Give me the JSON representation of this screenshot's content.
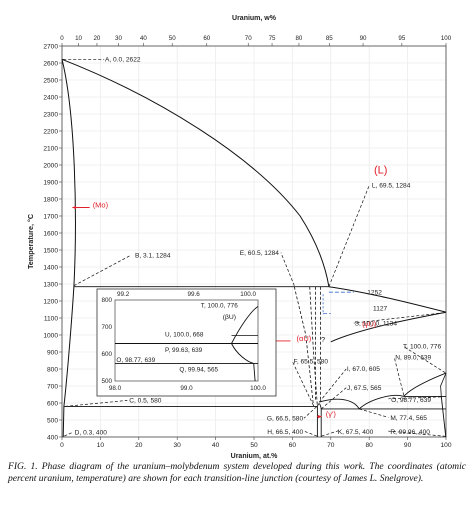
{
  "chart_data": {
    "type": "line",
    "top_axis_label": "Uranium, w%",
    "xlabel": "Uranium, at.%",
    "ylabel": "Temperature, °C",
    "xlim": [
      0,
      100
    ],
    "ylim": [
      400,
      2700
    ],
    "x_ticks": [
      0,
      10,
      20,
      30,
      40,
      50,
      60,
      70,
      80,
      90,
      100
    ],
    "y_ticks": [
      400,
      500,
      600,
      700,
      800,
      900,
      1000,
      1100,
      1200,
      1300,
      1400,
      1500,
      1600,
      1700,
      1800,
      1900,
      2000,
      2100,
      2200,
      2300,
      2400,
      2500,
      2600,
      2700
    ],
    "top_ticks": [
      {
        "label": "0",
        "at": 0
      },
      {
        "label": "10",
        "at": 4.3
      },
      {
        "label": "20",
        "at": 9.1
      },
      {
        "label": "30",
        "at": 14.7
      },
      {
        "label": "40",
        "at": 21.2
      },
      {
        "label": "50",
        "at": 28.7
      },
      {
        "label": "60",
        "at": 37.7
      },
      {
        "label": "70",
        "at": 48.5
      },
      {
        "label": "75",
        "at": 54.7
      },
      {
        "label": "80",
        "at": 61.7
      },
      {
        "label": "85",
        "at": 69.6
      },
      {
        "label": "90",
        "at": 78.4
      },
      {
        "label": "95",
        "at": 88.5
      },
      {
        "label": "100",
        "at": 100
      }
    ],
    "phase_labels": [
      {
        "text": "(L)",
        "x": 83,
        "y": 1950,
        "color": "#e0202a"
      },
      {
        "text": "(Mo)",
        "x": 10,
        "y": 1750,
        "color": "#e0202a"
      },
      {
        "text": "(γU)",
        "x": 80,
        "y": 1050,
        "color": "#e0202a"
      },
      {
        "text": "(βU)",
        "x": 47,
        "y": 735,
        "color": "#222222",
        "in_inset": true
      },
      {
        "text": "(αU)",
        "x": 63,
        "y": 965,
        "color": "#e0202a"
      },
      {
        "text": "(γ')",
        "x": 70,
        "y": 520,
        "color": "#e0202a"
      },
      {
        "text": "?",
        "x": 68,
        "y": 960,
        "color": "#222222"
      }
    ],
    "points": [
      {
        "id": "A",
        "label": "A, 0.0, 2622",
        "x": 0.0,
        "y": 2622
      },
      {
        "id": "B",
        "label": "B, 3.1, 1284",
        "x": 3.1,
        "y": 1284
      },
      {
        "id": "C",
        "label": "C, 0.5, 580",
        "x": 0.5,
        "y": 580
      },
      {
        "id": "D",
        "label": "D, 0.3, 400",
        "x": 0.3,
        "y": 400
      },
      {
        "id": "E",
        "label": "E, 60.5, 1284",
        "x": 60.5,
        "y": 1284
      },
      {
        "id": "L",
        "label": "L, 69.5, 1284",
        "x": 69.5,
        "y": 1284
      },
      {
        "id": "F",
        "label": "F, 65.5, 580",
        "x": 65.5,
        "y": 580
      },
      {
        "id": "G",
        "label": "G, 66.5, 580",
        "x": 66.5,
        "y": 580
      },
      {
        "id": "H",
        "label": "H, 66.5, 400",
        "x": 66.5,
        "y": 400
      },
      {
        "id": "I",
        "label": "I, 67.0, 605",
        "x": 67.0,
        "y": 605
      },
      {
        "id": "J",
        "label": "J, 67.5, 565",
        "x": 67.5,
        "y": 565
      },
      {
        "id": "K",
        "label": "K, 67.5, 400",
        "x": 67.5,
        "y": 400
      },
      {
        "id": "M",
        "label": "M, 77.4, 565",
        "x": 77.4,
        "y": 565
      },
      {
        "id": "N",
        "label": "N, 89.0, 639",
        "x": 89.0,
        "y": 639
      },
      {
        "id": "O",
        "label": "O, 98.77, 639",
        "x": 98.77,
        "y": 639
      },
      {
        "id": "R",
        "label": "R, 99.96, 400",
        "x": 99.96,
        "y": 400
      },
      {
        "id": "S",
        "label": "S, 100.0, 1134",
        "x": 100.0,
        "y": 1134
      },
      {
        "id": "T",
        "label": "T, 100.0, 776",
        "x": 100.0,
        "y": 776
      }
    ],
    "main_label_text": {
      "1252": "1252",
      "1127": "1127"
    },
    "inset": {
      "xlim": [
        98.0,
        100.0
      ],
      "ylim": [
        500,
        800
      ],
      "x_ticks": [
        "98.0",
        "99.0",
        "100.0"
      ],
      "y_ticks": [
        "500",
        "600",
        "700",
        "800"
      ],
      "top_ticks": [
        "99.2",
        "99.6",
        "100.0"
      ],
      "points": [
        {
          "label": "T, 100.0, 776"
        },
        {
          "label": "U, 100.0, 668"
        },
        {
          "label": "P, 99.63, 639"
        },
        {
          "label": "O, 98.77, 639"
        },
        {
          "label": "Q, 99.94, 565"
        }
      ]
    }
  },
  "caption": "FIG. 1. Phase diagram of the uranium–molybdenum system developed during this work. The coordinates (atomic percent uranium, temperature) are shown for each transition-line junction (courtesy of James L. Snelgrove)."
}
